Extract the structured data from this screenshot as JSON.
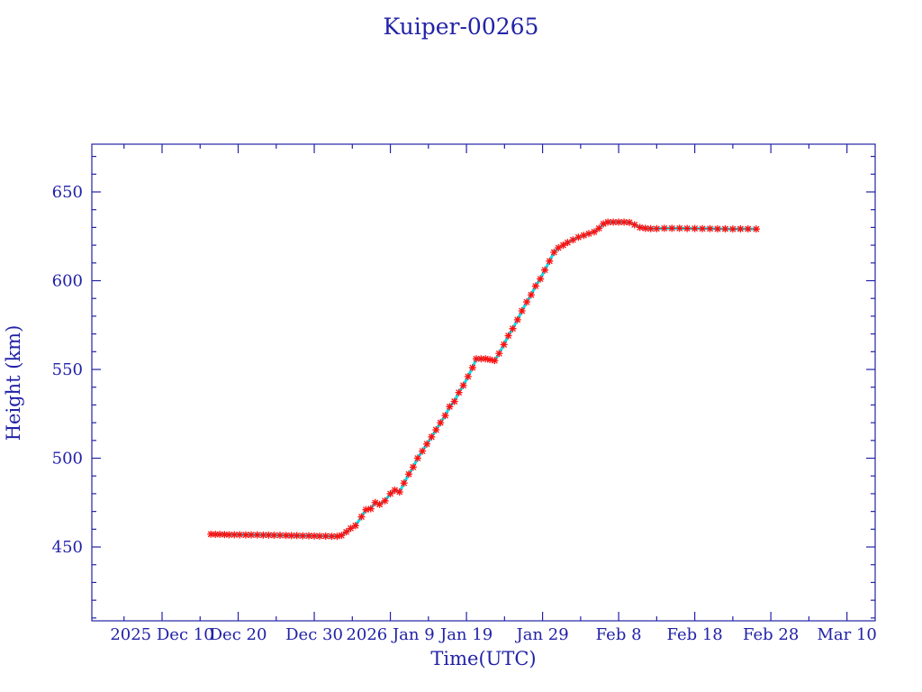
{
  "colors": {
    "text_and_axes": "#2222a8",
    "series_line": "#00e0ee",
    "markers": "#ff1010",
    "background": "#ffffff"
  },
  "chart_data": {
    "type": "line",
    "title": "Kuiper-00265",
    "xlabel": "Time(UTC)",
    "ylabel": "Height (km)",
    "xlim": [
      "2025-11-30T18:30",
      "2026-03-13T17:00"
    ],
    "ylim": [
      408.4,
      676.9
    ],
    "x_ticks": [
      {
        "value": "2025-12-10",
        "label": "2025 Dec 10"
      },
      {
        "value": "2025-12-20",
        "label": "Dec 20"
      },
      {
        "value": "2025-12-30",
        "label": "Dec 30"
      },
      {
        "value": "2026-01-09",
        "label": "2026 Jan 9"
      },
      {
        "value": "2026-01-19",
        "label": "Jan 19"
      },
      {
        "value": "2026-01-29",
        "label": "Jan 29"
      },
      {
        "value": "2026-02-08",
        "label": "Feb 8"
      },
      {
        "value": "2026-02-18",
        "label": "Feb 18"
      },
      {
        "value": "2026-02-28",
        "label": "Feb 28"
      },
      {
        "value": "2026-03-10",
        "label": "Mar 10"
      }
    ],
    "x_minor_tick_step_days": 5,
    "y_ticks": [
      {
        "value": 450,
        "label": "450"
      },
      {
        "value": 500,
        "label": "500"
      },
      {
        "value": 550,
        "label": "550"
      },
      {
        "value": 600,
        "label": "600"
      },
      {
        "value": 650,
        "label": "650"
      }
    ],
    "y_minor_tick_step": 10,
    "grid": false,
    "legend": "none",
    "marker": "asterisk",
    "series": [
      {
        "x": [
          "2025-12-16T10:00",
          "2025-12-17T00:00",
          "2025-12-17T14:00",
          "2025-12-18T05:00",
          "2025-12-18T19:00",
          "2025-12-19T12:00",
          "2025-12-20T05:00",
          "2025-12-21T00:00",
          "2025-12-21T17:00",
          "2025-12-22T12:00",
          "2025-12-23T07:00",
          "2025-12-24T00:00",
          "2025-12-24T17:00",
          "2025-12-25T12:00",
          "2025-12-26T07:00",
          "2025-12-27T00:00",
          "2025-12-27T17:00",
          "2025-12-28T12:00",
          "2025-12-29T07:00",
          "2025-12-30T00:00",
          "2025-12-30T17:00",
          "2025-12-31T12:00",
          "2026-01-01T07:00",
          "2026-01-02T00:00",
          "2026-01-02T14:00",
          "2026-01-03T05:00",
          "2026-01-03T19:00",
          "2026-01-04T10:00",
          "2026-01-05T05:00",
          "2026-01-05T19:00",
          "2026-01-06T10:00",
          "2026-01-07T00:00",
          "2026-01-07T14:00",
          "2026-01-08T07:00",
          "2026-01-09T00:00",
          "2026-01-09T14:00",
          "2026-01-10T05:00",
          "2026-01-10T19:00",
          "2026-01-11T10:00",
          "2026-01-12T00:00",
          "2026-01-12T14:00",
          "2026-01-13T05:00",
          "2026-01-13T19:00",
          "2026-01-14T10:00",
          "2026-01-15T00:00",
          "2026-01-15T14:00",
          "2026-01-16T05:00",
          "2026-01-16T19:00",
          "2026-01-17T10:00",
          "2026-01-18T00:00",
          "2026-01-18T14:00",
          "2026-01-19T05:00",
          "2026-01-19T19:00",
          "2026-01-20T07:00",
          "2026-01-20T22:00",
          "2026-01-21T12:00",
          "2026-01-22T02:00",
          "2026-01-22T17:00",
          "2026-01-23T07:00",
          "2026-01-23T22:00",
          "2026-01-24T12:00",
          "2026-01-25T02:00",
          "2026-01-25T17:00",
          "2026-01-26T07:00",
          "2026-01-26T22:00",
          "2026-01-27T12:00",
          "2026-01-28T02:00",
          "2026-01-28T17:00",
          "2026-01-29T07:00",
          "2026-01-29T22:00",
          "2026-01-30T12:00",
          "2026-01-31T02:00",
          "2026-01-31T17:00",
          "2026-02-01T07:00",
          "2026-02-02T00:00",
          "2026-02-02T17:00",
          "2026-02-03T10:00",
          "2026-02-04T02:00",
          "2026-02-04T19:00",
          "2026-02-05T10:00",
          "2026-02-06T00:00",
          "2026-02-06T14:00",
          "2026-02-07T07:00",
          "2026-02-08T00:00",
          "2026-02-08T17:00",
          "2026-02-09T10:00",
          "2026-02-10T02:00",
          "2026-02-10T19:00",
          "2026-02-11T12:00",
          "2026-02-12T05:00",
          "2026-02-13T00:00",
          "2026-02-14T00:00",
          "2026-02-15T00:00",
          "2026-02-16T00:00",
          "2026-02-17T00:00",
          "2026-02-18T00:00",
          "2026-02-19T00:00",
          "2026-02-20T00:00",
          "2026-02-21T00:00",
          "2026-02-22T00:00",
          "2026-02-23T00:00",
          "2026-02-24T00:00",
          "2026-02-25T00:00",
          "2026-02-26T02:00"
        ],
        "y": [
          457.2,
          457.1,
          457.1,
          457.0,
          456.9,
          456.9,
          456.9,
          456.8,
          456.8,
          456.8,
          456.7,
          456.7,
          456.6,
          456.6,
          456.5,
          456.4,
          456.4,
          456.3,
          456.3,
          456.2,
          456.1,
          456.1,
          456.0,
          456.0,
          456.5,
          458.5,
          460.5,
          462.0,
          467.0,
          471.0,
          471.5,
          475.0,
          474.0,
          476.0,
          480.0,
          482.0,
          481.0,
          486.0,
          491.0,
          495.0,
          500.0,
          504.0,
          508.0,
          512.0,
          516.0,
          520.0,
          524.0,
          529.0,
          532.0,
          537.0,
          541.0,
          546.0,
          551.0,
          556.0,
          556.0,
          556.0,
          555.5,
          555.0,
          559.0,
          564.0,
          569.0,
          573.0,
          578.0,
          583.0,
          588.0,
          592.0,
          597.0,
          601.0,
          606.0,
          611.0,
          616.0,
          618.5,
          620.0,
          621.5,
          623.0,
          624.5,
          625.5,
          626.5,
          627.5,
          629.5,
          632.0,
          633.0,
          633.0,
          633.0,
          633.0,
          632.8,
          631.5,
          630.0,
          629.5,
          629.3,
          629.3,
          629.5,
          629.5,
          629.5,
          629.4,
          629.4,
          629.3,
          629.3,
          629.2,
          629.2,
          629.1,
          629.2,
          629.2,
          629.1
        ]
      }
    ]
  }
}
